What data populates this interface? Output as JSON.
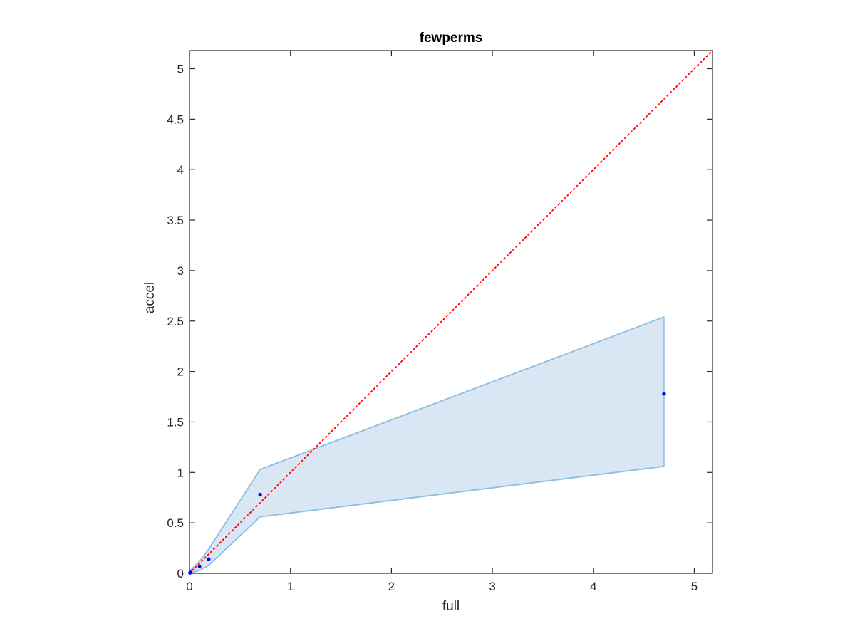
{
  "chart_data": {
    "type": "scatter",
    "title": "fewperms",
    "xlabel": "full",
    "ylabel": "accel",
    "xlim": [
      0,
      5.18
    ],
    "ylim": [
      0,
      5.18
    ],
    "xticks": [
      0,
      1,
      2,
      3,
      4,
      5
    ],
    "xtick_labels": [
      "0",
      "1",
      "2",
      "3",
      "4",
      "5"
    ],
    "yticks": [
      0,
      0.5,
      1,
      1.5,
      2,
      2.5,
      3,
      3.5,
      4,
      4.5,
      5
    ],
    "ytick_labels": [
      "0",
      "0.5",
      "1",
      "1.5",
      "2",
      "2.5",
      "3",
      "3.5",
      "4",
      "4.5",
      "5"
    ],
    "grid": false,
    "points": {
      "x": [
        0.005,
        0.01,
        0.1,
        0.19,
        0.7,
        4.7
      ],
      "y": [
        0.005,
        0.01,
        0.07,
        0.14,
        0.78,
        1.78
      ],
      "color": "#0000ff"
    },
    "band": {
      "x": [
        0.005,
        0.01,
        0.1,
        0.19,
        0.7,
        4.7
      ],
      "upper": [
        0.01,
        0.03,
        0.12,
        0.24,
        1.03,
        2.54
      ],
      "lower": [
        0.0,
        0.005,
        0.03,
        0.08,
        0.56,
        1.06
      ],
      "fill_color": "#d8e7f3",
      "edge_color": "#8ebfdf"
    },
    "reference_line": {
      "style": "dotted",
      "color": "#ff0000",
      "x": [
        0,
        5.18
      ],
      "y": [
        0,
        5.18
      ]
    },
    "axis_color": "#262626"
  }
}
